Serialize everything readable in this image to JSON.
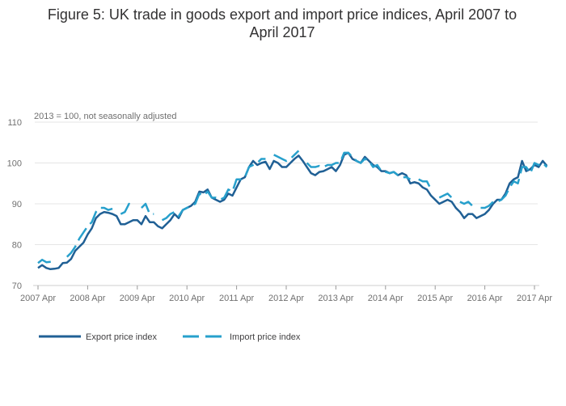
{
  "chart_data": {
    "type": "line",
    "title_line1": "Figure 5: UK trade in goods export and import price indices, April 2007 to",
    "title_line2": "April 2017",
    "subtitle": "2013 = 100, not seasonally adjusted",
    "xlabel": "",
    "ylabel": "",
    "ylim": [
      70,
      110
    ],
    "yticks": [
      "70",
      "80",
      "90",
      "100",
      "110"
    ],
    "xticks": [
      "2007 Apr",
      "2008 Apr",
      "2009 Apr",
      "2010 Apr",
      "2011 Apr",
      "2012 Apr",
      "2013 Apr",
      "2014 Apr",
      "2015 Apr",
      "2016 Apr",
      "2017 Apr"
    ],
    "grid": true,
    "legend_position": "bottom-left",
    "x_start": "2007 Apr",
    "x_end": "2017 Apr",
    "series": [
      {
        "name": "Export price index",
        "color": "#206095",
        "style": "solid",
        "values": [
          74.3,
          75.0,
          74.3,
          74.0,
          74.1,
          74.3,
          75.5,
          75.6,
          76.5,
          78.5,
          79.5,
          80.5,
          82.5,
          84.0,
          86.5,
          87.5,
          88.0,
          87.8,
          87.5,
          87.0,
          85.0,
          85.0,
          85.5,
          86.0,
          86.0,
          85.0,
          87.0,
          85.5,
          85.5,
          84.5,
          84.0,
          85.0,
          86.0,
          87.5,
          86.5,
          88.5,
          89.0,
          89.5,
          90.5,
          93.0,
          92.8,
          93.5,
          91.5,
          91.0,
          90.5,
          91.0,
          92.5,
          92.0,
          94.0,
          96.0,
          96.5,
          99.0,
          100.5,
          99.5,
          100.0,
          100.3,
          98.5,
          100.5,
          100.0,
          99.0,
          99.0,
          100.0,
          101.0,
          101.8,
          100.5,
          99.0,
          97.5,
          97.0,
          97.8,
          98.0,
          98.5,
          99.0,
          98.0,
          99.5,
          102.0,
          102.5,
          101.0,
          100.5,
          100.0,
          101.5,
          100.5,
          99.5,
          99.0,
          98.0,
          98.0,
          97.5,
          97.8,
          97.0,
          97.5,
          97.0,
          95.0,
          95.3,
          95.0,
          94.0,
          93.5,
          92.0,
          91.0,
          90.0,
          90.5,
          91.0,
          90.5,
          89.0,
          88.0,
          86.5,
          87.5,
          87.5,
          86.5,
          87.0,
          87.5,
          88.5,
          90.0,
          91.0,
          91.0,
          92.5,
          95.0,
          96.0,
          96.5,
          100.5,
          98.0,
          98.5,
          99.5,
          99.0,
          100.5,
          99.3
        ],
        "gaps": []
      },
      {
        "name": "Import price index",
        "color": "#27a0cc",
        "style": "dashed",
        "values": [
          75.5,
          76.3,
          75.7,
          75.8,
          75.9,
          null,
          null,
          77.0,
          78.0,
          79.5,
          81.5,
          83.0,
          84.5,
          85.5,
          88.0,
          89.0,
          89.0,
          88.5,
          88.8,
          null,
          87.5,
          88.0,
          90.0,
          89.5,
          null,
          89.0,
          90.0,
          87.5,
          87.5,
          null,
          86.0,
          86.5,
          87.5,
          88.0,
          87.0,
          88.5,
          89.0,
          89.5,
          90.0,
          92.5,
          92.0,
          93.0,
          91.5,
          91.5,
          91.0,
          91.5,
          93.5,
          93.0,
          96.0,
          96.0,
          96.5,
          99.0,
          99.5,
          100.0,
          101.0,
          101.0,
          null,
          102.0,
          101.5,
          101.0,
          100.5,
          101.0,
          102.0,
          103.0,
          null,
          100.0,
          99.0,
          99.0,
          99.3,
          99.0,
          99.5,
          99.5,
          100.0,
          100.0,
          102.5,
          102.5,
          101.5,
          100.5,
          100.0,
          101.0,
          100.5,
          99.0,
          99.5,
          98.0,
          97.8,
          97.5,
          97.8,
          97.0,
          96.5,
          96.5,
          96.0,
          null,
          96.0,
          95.5,
          95.5,
          93.5,
          null,
          91.5,
          92.0,
          92.5,
          91.5,
          null,
          90.5,
          90.0,
          90.5,
          89.5,
          null,
          89.0,
          89.0,
          89.5,
          90.5,
          90.5,
          91.0,
          92.0,
          94.0,
          95.5,
          95.0,
          99.0,
          99.0,
          97.5,
          100.0,
          99.5,
          100.0,
          99.0
        ],
        "gaps": []
      }
    ]
  }
}
